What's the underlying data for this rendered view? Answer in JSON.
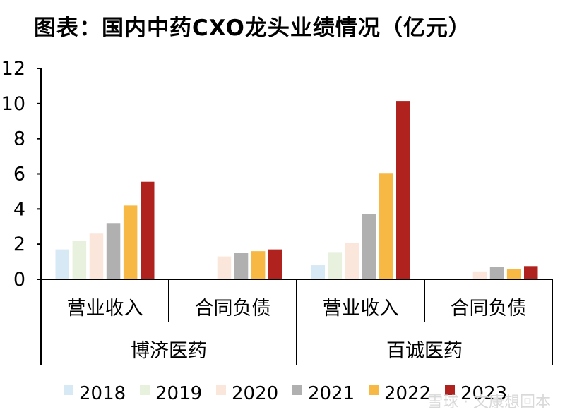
{
  "title": "图表：国内中药CXO龙头业绩情况（亿元）",
  "watermark": "雪球 · 文康想回本",
  "colors": {
    "2018": "#d6e9f5",
    "2019": "#e7f1de",
    "2020": "#fbe6dc",
    "2021": "#b0b0b0",
    "2022": "#f7b944",
    "2023": "#b0221e",
    "axis": "#000000"
  },
  "chart_data": {
    "type": "bar",
    "ylim": [
      0,
      12
    ],
    "yticks": [
      "0",
      "2",
      "4",
      "6",
      "8",
      "10",
      "12"
    ],
    "legend_position": "bottom",
    "grid": false,
    "groups": [
      "博济医药",
      "百诚医药"
    ],
    "categories": [
      "营业收入",
      "合同负债",
      "营业收入",
      "合同负债"
    ],
    "category_group": [
      0,
      0,
      1,
      1
    ],
    "series": [
      {
        "name": "2018",
        "values": [
          1.7,
          null,
          0.8,
          null
        ]
      },
      {
        "name": "2019",
        "values": [
          2.2,
          null,
          1.55,
          null
        ]
      },
      {
        "name": "2020",
        "values": [
          2.6,
          1.3,
          2.05,
          0.45
        ]
      },
      {
        "name": "2021",
        "values": [
          3.2,
          1.5,
          3.7,
          0.7
        ]
      },
      {
        "name": "2022",
        "values": [
          4.2,
          1.6,
          6.05,
          0.6
        ]
      },
      {
        "name": "2023",
        "values": [
          5.55,
          1.7,
          10.15,
          0.75
        ]
      }
    ]
  }
}
